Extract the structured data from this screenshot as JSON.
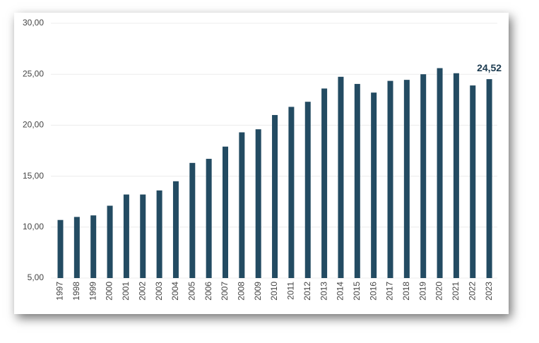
{
  "chart_data": {
    "type": "bar",
    "categories": [
      "1997",
      "1998",
      "1999",
      "2000",
      "2001",
      "2002",
      "2003",
      "2004",
      "2005",
      "2006",
      "2007",
      "2008",
      "2009",
      "2010",
      "2011",
      "2012",
      "2013",
      "2014",
      "2015",
      "2016",
      "2017",
      "2018",
      "2019",
      "2020",
      "2021",
      "2022",
      "2023"
    ],
    "values": [
      10.7,
      11.0,
      11.15,
      12.1,
      13.2,
      13.2,
      13.6,
      14.5,
      16.3,
      16.7,
      17.9,
      19.3,
      19.6,
      21.0,
      21.8,
      22.3,
      23.6,
      24.75,
      24.05,
      23.2,
      24.35,
      24.45,
      25.0,
      25.6,
      25.1,
      23.9,
      24.52
    ],
    "value_labels": [
      null,
      null,
      null,
      null,
      null,
      null,
      null,
      null,
      null,
      null,
      null,
      null,
      null,
      null,
      null,
      null,
      null,
      null,
      null,
      null,
      null,
      null,
      null,
      null,
      null,
      null,
      "24,52"
    ],
    "color": "#234b62",
    "ylim": [
      5,
      30
    ],
    "yticks": [
      {
        "value": 5,
        "label": "5,00"
      },
      {
        "value": 10,
        "label": "10,00"
      },
      {
        "value": 15,
        "label": "15,00"
      },
      {
        "value": 20,
        "label": "20,00"
      },
      {
        "value": 25,
        "label": "25,00"
      },
      {
        "value": 30,
        "label": "30,00"
      }
    ],
    "grid": true
  }
}
